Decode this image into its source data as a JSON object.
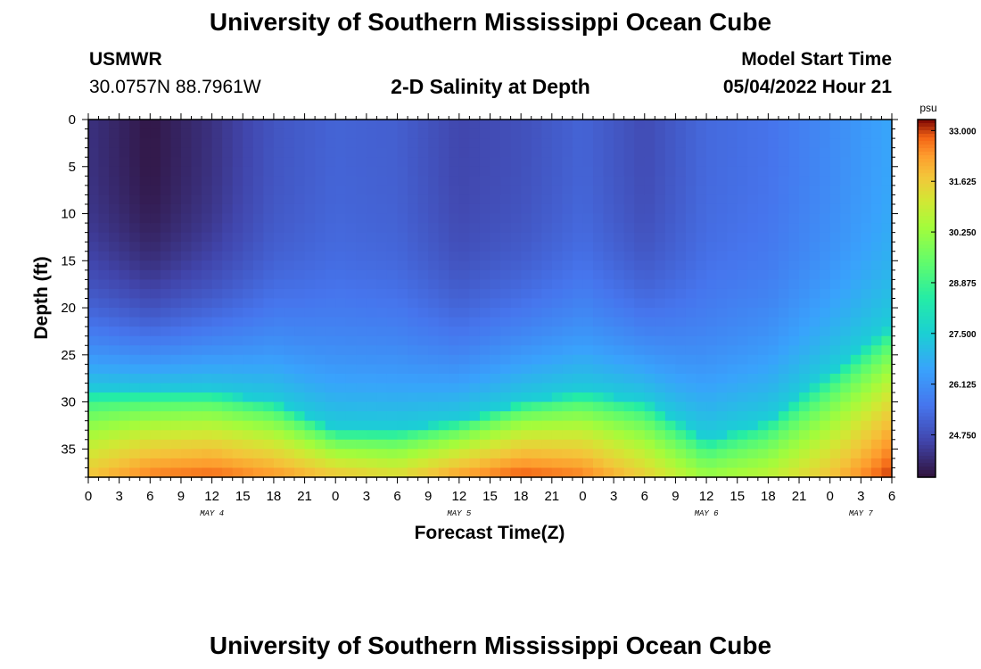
{
  "header": {
    "title": "University of Southern Mississippi Ocean Cube",
    "station": "USMWR",
    "coords": "30.0757N  88.7961W",
    "subtitle": "2-D Salinity at Depth",
    "model_start_label": "Model Start Time",
    "model_start_value": "05/04/2022 Hour 21"
  },
  "footer": {
    "title": "University of Southern Mississippi Ocean Cube"
  },
  "chart_data": {
    "type": "heatmap",
    "xlabel": "Forecast Time(Z)",
    "ylabel": "Depth (ft)",
    "x_tick_labels": [
      "0",
      "3",
      "6",
      "9",
      "12",
      "15",
      "18",
      "21",
      "0",
      "3",
      "6",
      "9",
      "12",
      "15",
      "18",
      "21",
      "0",
      "3",
      "6",
      "9",
      "12",
      "15",
      "18",
      "21",
      "0",
      "3",
      "6"
    ],
    "x_range_hours": [
      0,
      78
    ],
    "date_labels": [
      {
        "text": "MAY 4",
        "hour": 12
      },
      {
        "text": "MAY 5",
        "hour": 36
      },
      {
        "text": "MAY 6",
        "hour": 60
      },
      {
        "text": "MAY 7",
        "hour": 75
      }
    ],
    "y_ticks": [
      0,
      5,
      10,
      15,
      20,
      25,
      30,
      35
    ],
    "ylim": [
      0,
      38
    ],
    "y_inverted": true,
    "colorbar": {
      "unit": "psu",
      "min": 23.6,
      "max": 33.3,
      "tick_values": [
        24.75,
        26.125,
        27.5,
        28.875,
        30.25,
        31.625,
        33.0
      ],
      "tick_labels": [
        "24.750",
        "26.125",
        "27.500",
        "28.875",
        "30.250",
        "31.625",
        "33.000"
      ]
    },
    "grid": false,
    "salinity_profile": {
      "description_units": "hour -> depth (ft) of the 27.5 psu contour and bottom salinity (psu)",
      "hours": [
        0,
        6,
        12,
        18,
        24,
        30,
        36,
        42,
        48,
        54,
        60,
        66,
        72,
        78
      ],
      "halocline_depth_ft": [
        29,
        29,
        29,
        30,
        33,
        33,
        32,
        30,
        29,
        30,
        34,
        32,
        27,
        22
      ],
      "bottom_salinity_psu": [
        31.8,
        32.6,
        32.8,
        32.4,
        31.8,
        31.4,
        32.3,
        32.9,
        32.6,
        31.6,
        30.3,
        30.8,
        31.8,
        33.1
      ],
      "surface_salinity_psu": [
        24.2,
        23.7,
        24.2,
        24.9,
        25.2,
        25.1,
        24.6,
        24.8,
        25.2,
        24.7,
        25.3,
        25.5,
        26.0,
        26.6
      ]
    }
  }
}
